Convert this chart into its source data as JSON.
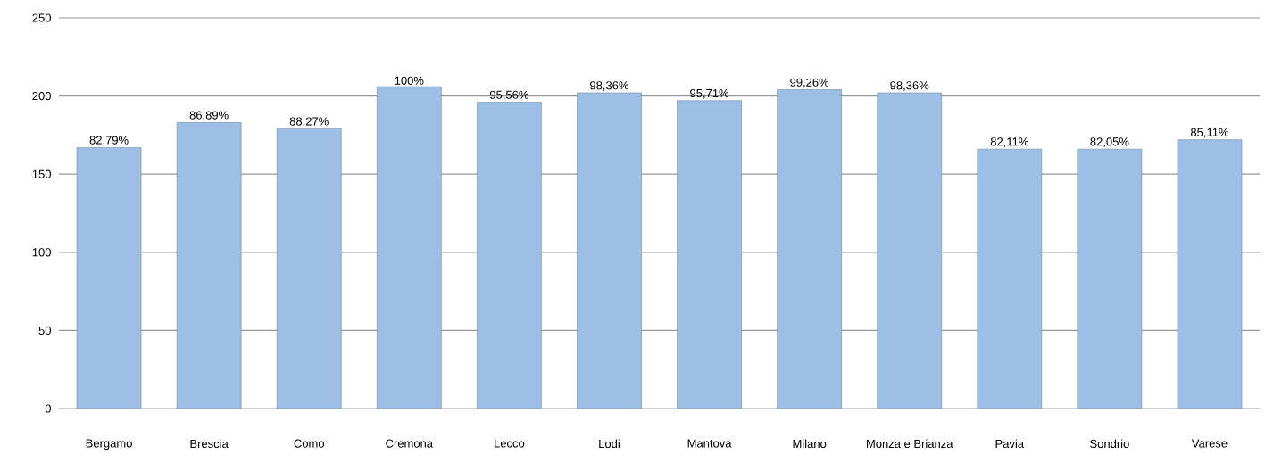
{
  "chart_data": {
    "type": "bar",
    "categories": [
      "Bergamo",
      "Brescia",
      "Como",
      "Cremona",
      "Lecco",
      "Lodi",
      "Mantova",
      "Milano",
      "Monza e Brianza",
      "Pavia",
      "Sondrio",
      "Varese"
    ],
    "values": [
      167,
      183,
      179,
      206,
      196,
      202,
      197,
      204,
      202,
      166,
      166,
      172
    ],
    "annotations": [
      {
        "text": "82,79%",
        "x": "Bergamo",
        "y": 167
      },
      {
        "text": "86,89%",
        "x": "Brescia",
        "y": 183
      },
      {
        "text": "88,27%",
        "x": "Como",
        "y": 179
      },
      {
        "text": "100%",
        "x": "Cremona",
        "y": 206
      },
      {
        "text": "95,56%",
        "x": "Lecco",
        "y": 196
      },
      {
        "text": "98,36%",
        "x": "Lodi",
        "y": 202
      },
      {
        "text": "95,71%",
        "x": "Mantova",
        "y": 197
      },
      {
        "text": "99,26%",
        "x": "Milano",
        "y": 204
      },
      {
        "text": "98,36%",
        "x": "Monza e Brianza",
        "y": 202
      },
      {
        "text": "82,11%",
        "x": "Pavia",
        "y": 166
      },
      {
        "text": "82,05%",
        "x": "Sondrio",
        "y": 166
      },
      {
        "text": "85,11%",
        "x": "Varese",
        "y": 172
      }
    ],
    "color": "#9dbfe6",
    "ylim": [
      0,
      250
    ],
    "yticks": [
      0,
      50,
      100,
      150,
      200,
      250
    ],
    "grid": "y"
  }
}
